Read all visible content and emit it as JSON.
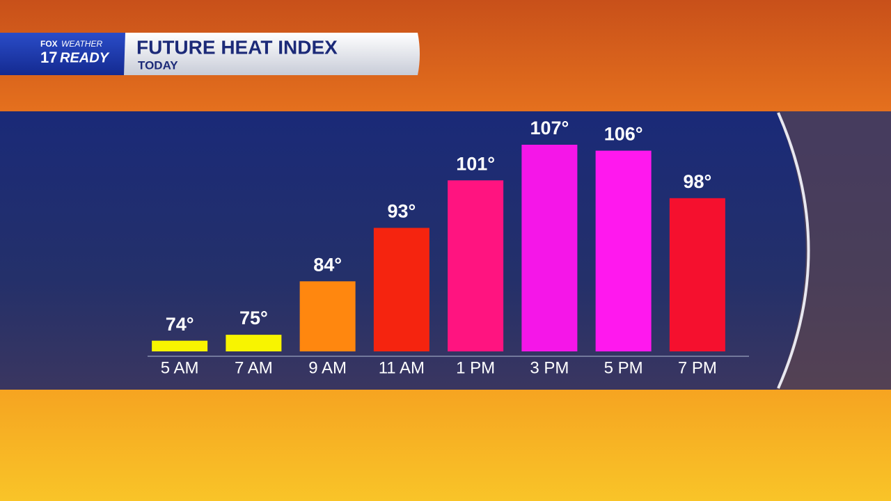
{
  "logo": {
    "station": "FOX",
    "brand": "WEATHER",
    "number": "17",
    "tagline": "READY"
  },
  "chart_data": {
    "type": "bar",
    "title": "FUTURE HEAT INDEX",
    "subtitle": "TODAY",
    "categories": [
      "5 AM",
      "7 AM",
      "9 AM",
      "11 AM",
      "1 PM",
      "3 PM",
      "5 PM",
      "7 PM"
    ],
    "values": [
      74,
      75,
      84,
      93,
      101,
      107,
      106,
      98
    ],
    "value_labels": [
      "74°",
      "75°",
      "84°",
      "93°",
      "101°",
      "107°",
      "106°",
      "98°"
    ],
    "colors": [
      "#f8f400",
      "#f8f400",
      "#ff870f",
      "#f5240f",
      "#ff1480",
      "#f516e8",
      "#ff18ee",
      "#f5102e"
    ],
    "ylim": [
      72.2,
      107
    ]
  }
}
